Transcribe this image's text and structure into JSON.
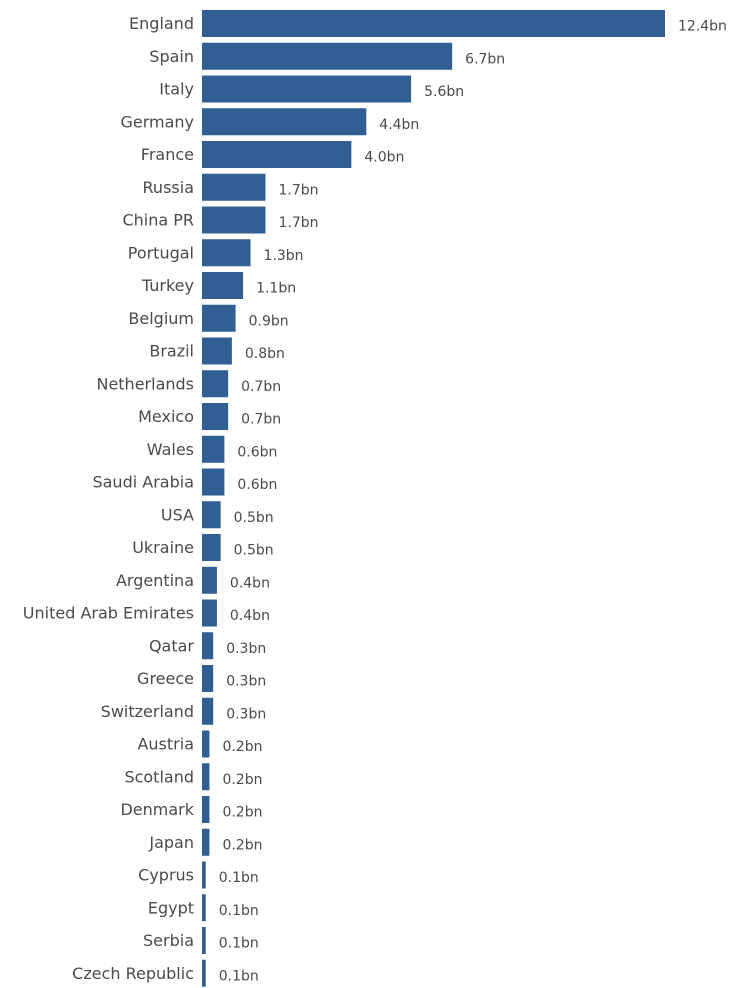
{
  "chart_data": {
    "type": "bar",
    "orientation": "horizontal",
    "bar_color": "#2f5f93",
    "text_color": "#4a4a4a",
    "categories": [
      "England",
      "Spain",
      "Italy",
      "Germany",
      "France",
      "Russia",
      "China PR",
      "Portugal",
      "Turkey",
      "Belgium",
      "Brazil",
      "Netherlands",
      "Mexico",
      "Wales",
      "Saudi Arabia",
      "USA",
      "Ukraine",
      "Argentina",
      "United Arab Emirates",
      "Qatar",
      "Greece",
      "Switzerland",
      "Austria",
      "Scotland",
      "Denmark",
      "Japan",
      "Cyprus",
      "Egypt",
      "Serbia",
      "Czech Republic"
    ],
    "values": [
      12.4,
      6.7,
      5.6,
      4.4,
      4.0,
      1.7,
      1.7,
      1.3,
      1.1,
      0.9,
      0.8,
      0.7,
      0.7,
      0.6,
      0.6,
      0.5,
      0.5,
      0.4,
      0.4,
      0.3,
      0.3,
      0.3,
      0.2,
      0.2,
      0.2,
      0.2,
      0.1,
      0.1,
      0.1,
      0.1
    ],
    "value_labels": [
      "12.4bn",
      "6.7bn",
      "5.6bn",
      "4.4bn",
      "4.0bn",
      "1.7bn",
      "1.7bn",
      "1.3bn",
      "1.1bn",
      "0.9bn",
      "0.8bn",
      "0.7bn",
      "0.7bn",
      "0.6bn",
      "0.6bn",
      "0.5bn",
      "0.5bn",
      "0.4bn",
      "0.4bn",
      "0.3bn",
      "0.3bn",
      "0.3bn",
      "0.2bn",
      "0.2bn",
      "0.2bn",
      "0.2bn",
      "0.1bn",
      "0.1bn",
      "0.1bn",
      "0.1bn"
    ],
    "title": "",
    "xlabel": "",
    "ylabel": "",
    "grid": false,
    "legend": "none"
  }
}
